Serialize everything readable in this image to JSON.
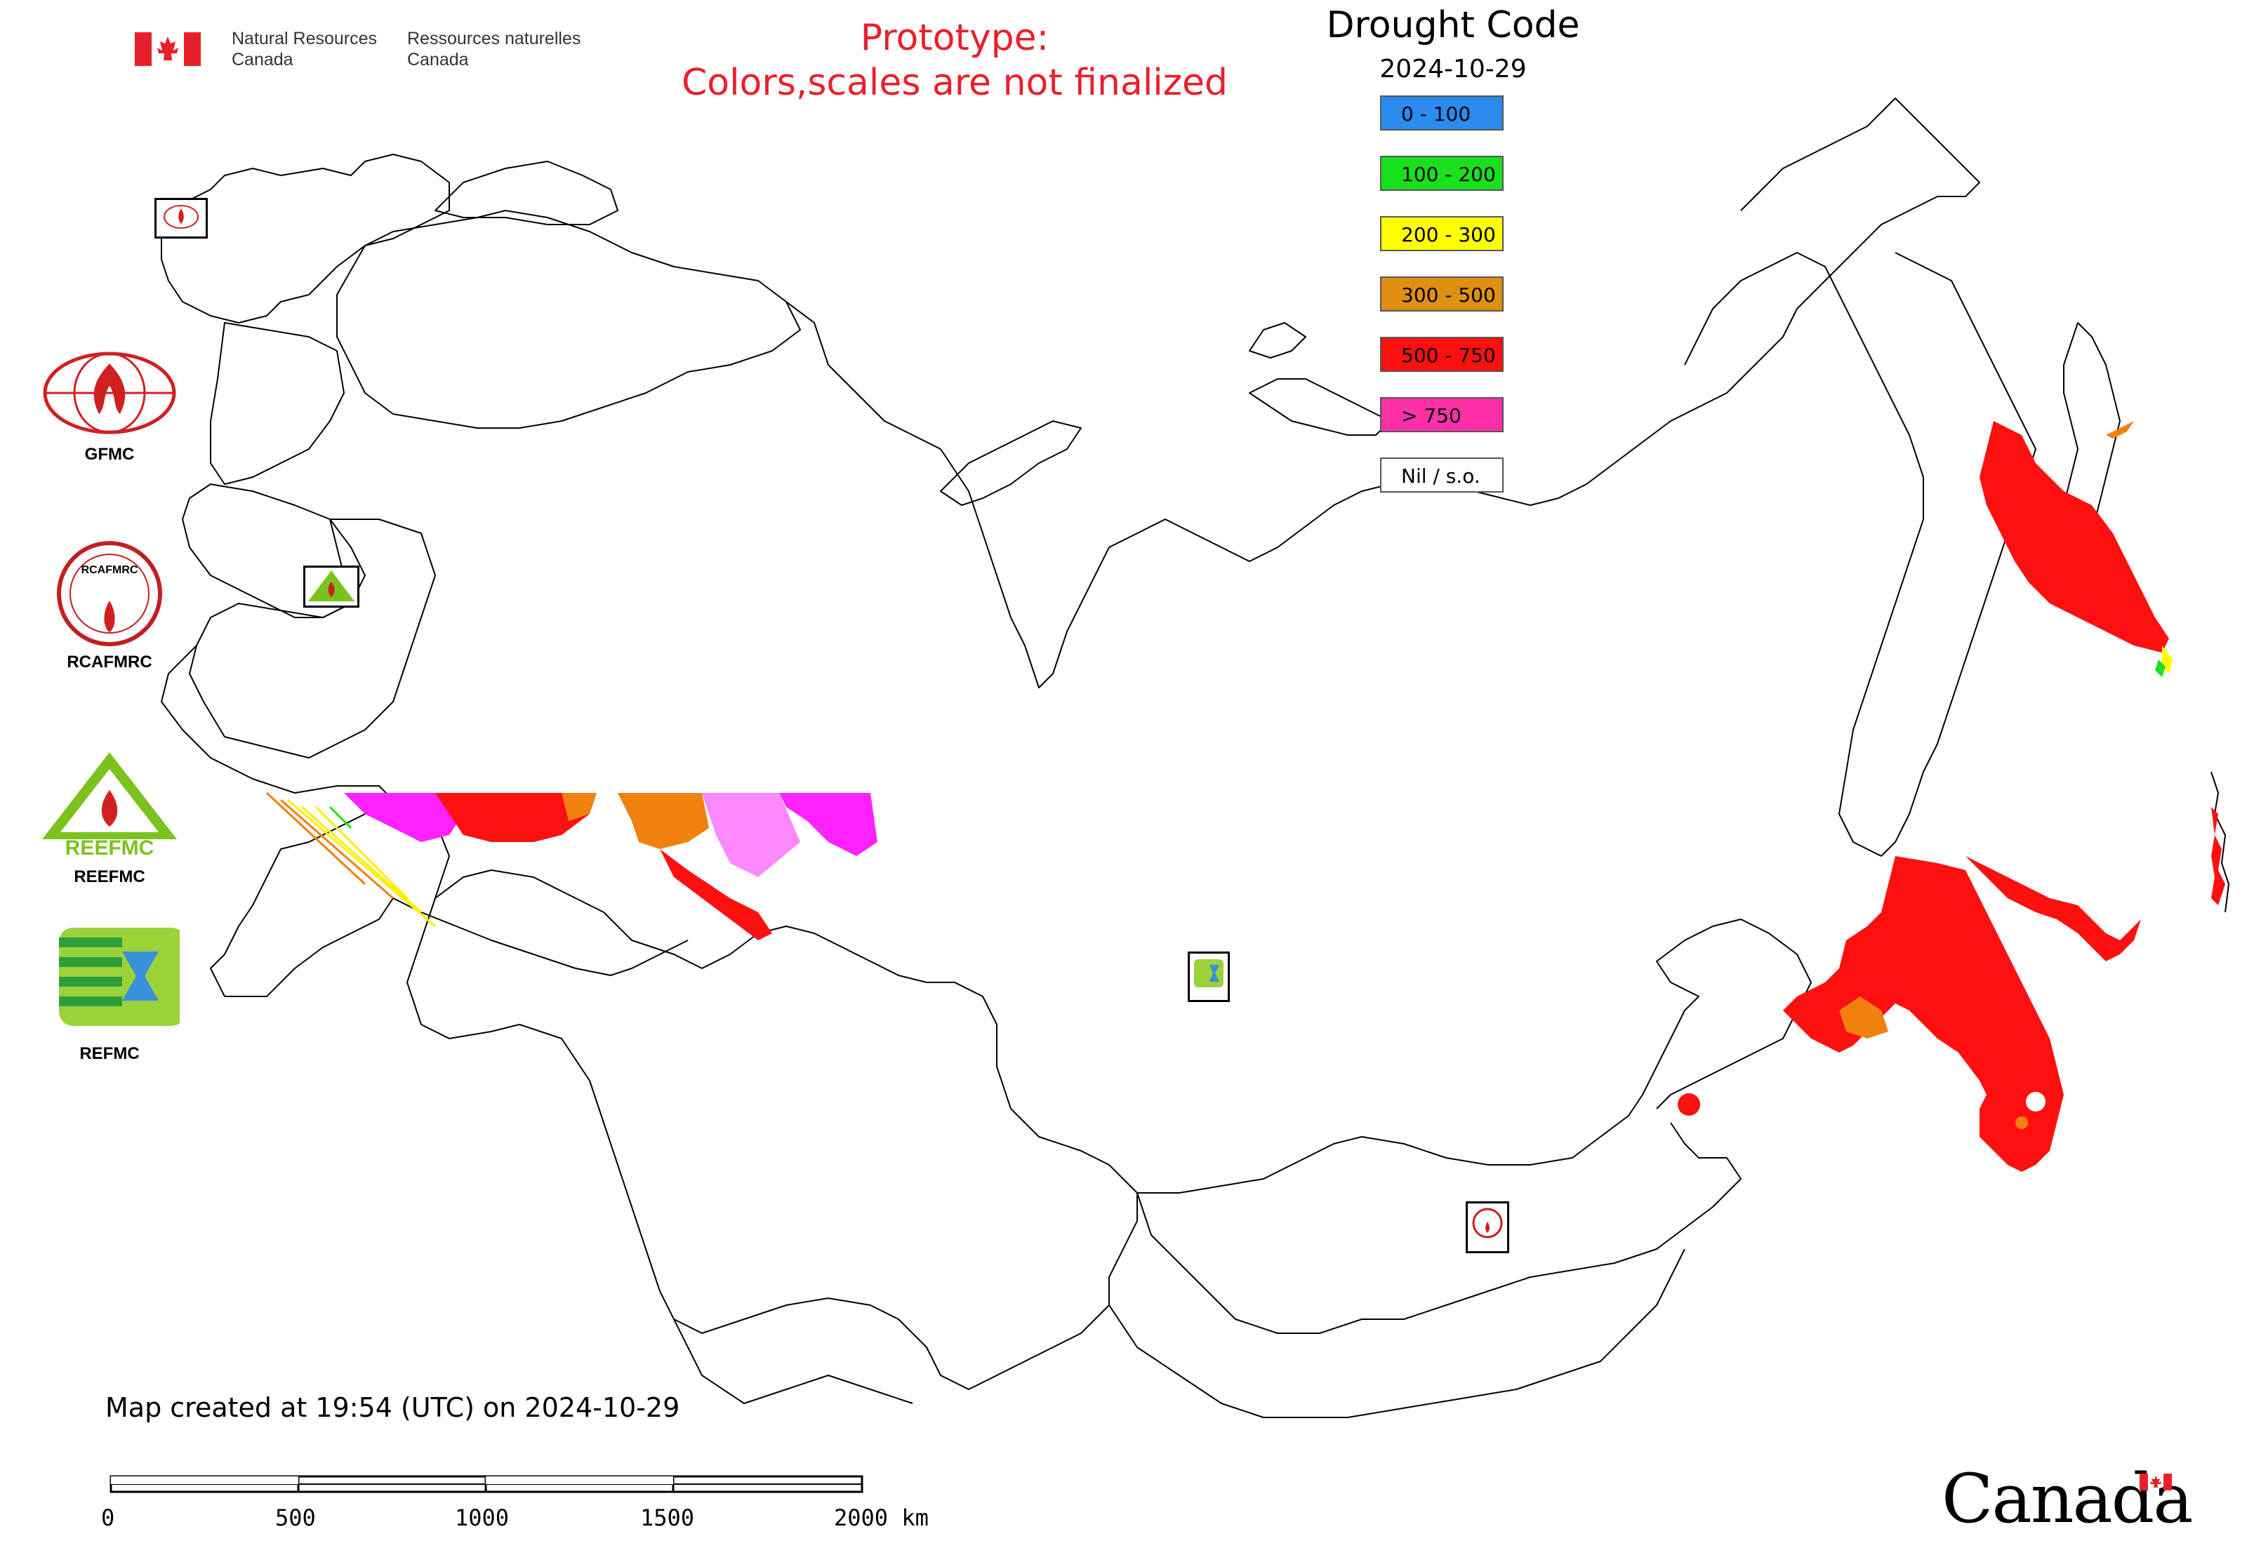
{
  "header": {
    "org_en_line1": "Natural Resources",
    "org_en_line2": "Canada",
    "org_fr_line1": "Ressources naturelles",
    "org_fr_line2": "Canada",
    "prototype_line1": "Prototype:",
    "prototype_line2": "Colors,scales are not finalized"
  },
  "legend": {
    "title": "Drought Code",
    "date": "2024-10-29",
    "items": [
      {
        "label": "0 - 100",
        "color": "#2b8cf0"
      },
      {
        "label": "100 - 200",
        "color": "#19e01c"
      },
      {
        "label": "200 - 300",
        "color": "#ffff00"
      },
      {
        "label": "300 - 500",
        "color": "#e09010"
      },
      {
        "label": "500 - 750",
        "color": "#ff1010"
      },
      {
        "label": "> 750",
        "color": "#ff30a8"
      },
      {
        "label": "Nil / s.o.",
        "color": "#ffffff"
      }
    ]
  },
  "logos": [
    {
      "label": "GFMC"
    },
    {
      "label": "RCAFMRC"
    },
    {
      "label": "REEFMC"
    },
    {
      "label": "REFMC"
    }
  ],
  "logo_texts": {
    "rcafmrc_badge": "RCAFMRC",
    "reefmc_badge": "REEFMC"
  },
  "footer": {
    "created": "Map created at 19:54 (UTC) on 2024-10-29",
    "scale_labels": [
      "0",
      "500",
      "1000",
      "1500",
      "2000 km"
    ],
    "wordmark": "Canada"
  },
  "map": {
    "unit": "km",
    "fill_colors": {
      "red": "#ff1010",
      "orange": "#f08010",
      "magenta": "#ff22ff",
      "pink": "#ff30a8",
      "yellow": "#ffff00",
      "green": "#19e01c"
    }
  }
}
